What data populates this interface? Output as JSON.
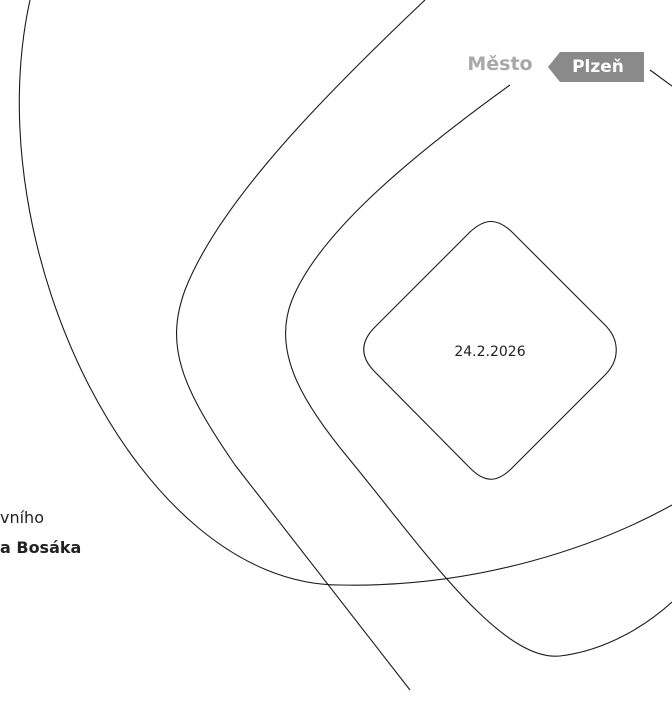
{
  "logo": {
    "prefix": "Město",
    "name": "Plzeň"
  },
  "date": "24.2.2026",
  "text_lines": [
    "vního",
    "a Bosáka"
  ]
}
